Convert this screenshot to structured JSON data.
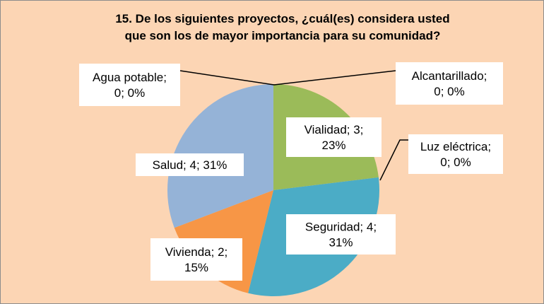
{
  "chart_data": {
    "type": "pie",
    "title": "15. De los siguientes proyectos, ¿cuál(es) considera usted\nque son los de mayor importancia para su comunidad?",
    "categories": [
      "Alcantarillado",
      "Vialidad",
      "Luz eléctrica",
      "Seguridad",
      "Vivienda",
      "Salud",
      "Agua potable"
    ],
    "values": [
      0,
      3,
      0,
      4,
      2,
      4,
      0
    ],
    "value_labels": [
      "Alcantarillado;\n0; 0%",
      "Vialidad; 3;\n23%",
      "Luz eléctrica;\n0; 0%",
      "Seguridad; 4;\n31%",
      "Vivienda; 2;\n15%",
      "Salud; 4; 31%",
      "Agua potable;\n0; 0%"
    ],
    "colors": [
      "#4f81bd",
      "#9bbb59",
      "#c0504d",
      "#4bacc6",
      "#f79646",
      "#95b3d7",
      "#8064a2"
    ]
  }
}
